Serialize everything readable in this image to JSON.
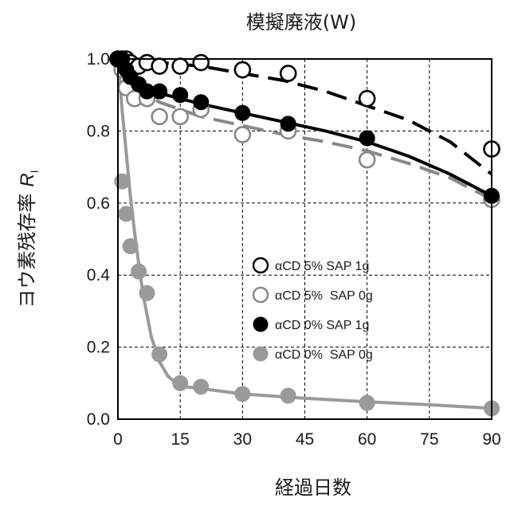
{
  "chart_data": {
    "type": "scatter",
    "title": "模擬廃液(W)",
    "xlabel": "経過日数",
    "ylabel": "ヨウ素残存率",
    "ylabel_symbol": "R",
    "ylabel_subscript": "I",
    "xlim": [
      0,
      90
    ],
    "ylim": [
      0,
      1.0
    ],
    "xticks": [
      "0",
      "15",
      "30",
      "45",
      "60",
      "75",
      "90"
    ],
    "yticks": [
      "0.0",
      "0.2",
      "0.4",
      "0.6",
      "0.8",
      "1.0"
    ],
    "grid": true,
    "legend_position": "center-right",
    "series": [
      {
        "name": "αCD 5% SAP 1g",
        "marker": "open-circle",
        "color": "#000000",
        "line": "dashed",
        "x": [
          0,
          1,
          2,
          3,
          5,
          7,
          10,
          15,
          20,
          30,
          41,
          60,
          90
        ],
        "y": [
          1.0,
          1.0,
          1.0,
          0.99,
          0.98,
          0.99,
          0.98,
          0.98,
          0.99,
          0.97,
          0.96,
          0.89,
          0.75
        ],
        "fit_x": [
          0,
          5,
          10,
          20,
          30,
          40,
          50,
          60,
          70,
          80,
          90
        ],
        "fit_y": [
          1.0,
          0.995,
          0.99,
          0.98,
          0.96,
          0.94,
          0.91,
          0.87,
          0.83,
          0.77,
          0.68
        ]
      },
      {
        "name": "αCD 5%  SAP 0g",
        "marker": "open-circle",
        "color": "#888888",
        "line": "dashed",
        "x": [
          0,
          1,
          2,
          4,
          7,
          10,
          15,
          20,
          30,
          41,
          60,
          90
        ],
        "y": [
          1.0,
          0.97,
          0.92,
          0.89,
          0.89,
          0.84,
          0.84,
          0.86,
          0.79,
          0.8,
          0.72,
          0.61
        ],
        "fit_x": [
          0,
          2,
          5,
          10,
          20,
          30,
          40,
          50,
          60,
          70,
          80,
          90
        ],
        "fit_y": [
          1.0,
          0.93,
          0.91,
          0.88,
          0.84,
          0.815,
          0.79,
          0.77,
          0.745,
          0.71,
          0.67,
          0.61
        ]
      },
      {
        "name": "αCD 0% SAP 1g",
        "marker": "filled-circle",
        "color": "#000000",
        "line": "solid",
        "x": [
          0,
          1,
          2,
          3,
          5,
          7,
          10,
          15,
          20,
          30,
          41,
          60,
          90
        ],
        "y": [
          1.0,
          1.0,
          0.97,
          0.95,
          0.93,
          0.91,
          0.91,
          0.9,
          0.88,
          0.85,
          0.82,
          0.78,
          0.62
        ],
        "fit_x": [
          0,
          2,
          5,
          10,
          20,
          30,
          40,
          50,
          60,
          70,
          80,
          90
        ],
        "fit_y": [
          1.0,
          0.95,
          0.925,
          0.905,
          0.875,
          0.85,
          0.825,
          0.8,
          0.77,
          0.73,
          0.68,
          0.62
        ]
      },
      {
        "name": "αCD 0%  SAP 0g",
        "marker": "filled-circle",
        "color": "#9a9a9a",
        "line": "solid",
        "x": [
          0,
          1,
          2,
          3,
          5,
          7,
          10,
          15,
          20,
          30,
          41,
          60,
          90
        ],
        "y": [
          1.0,
          0.66,
          0.57,
          0.48,
          0.41,
          0.35,
          0.18,
          0.1,
          0.09,
          0.07,
          0.065,
          0.045,
          0.03
        ],
        "fit_x": [
          0,
          1,
          2,
          3,
          4,
          5,
          6,
          8,
          10,
          12,
          14,
          16,
          20,
          30,
          45,
          60,
          75,
          90
        ],
        "fit_y": [
          1.0,
          0.86,
          0.74,
          0.62,
          0.52,
          0.43,
          0.35,
          0.23,
          0.16,
          0.12,
          0.1,
          0.09,
          0.085,
          0.07,
          0.058,
          0.048,
          0.04,
          0.03
        ]
      }
    ]
  }
}
